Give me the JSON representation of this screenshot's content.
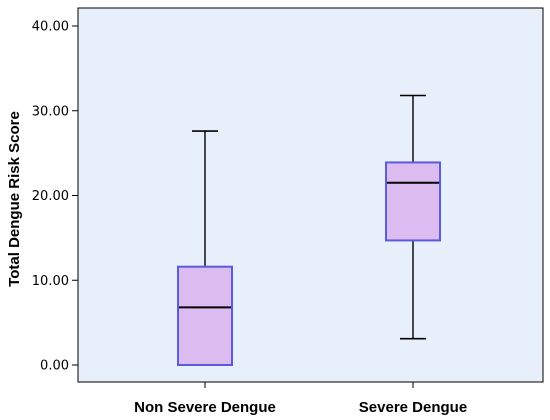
{
  "chart_data": {
    "type": "boxplot",
    "ylabel": "Total Dengue Risk Score",
    "xlabel": "",
    "ylim": [
      0,
      40
    ],
    "yticks": [
      "0.00",
      "10.00",
      "20.00",
      "30.00",
      "40.00"
    ],
    "grid": false,
    "categories": [
      "Non Severe Dengue",
      "Severe Dengue"
    ],
    "boxes": [
      {
        "category": "Non Severe Dengue",
        "min": 0.0,
        "q1": 0.0,
        "median": 6.8,
        "q3": 11.6,
        "max": 27.6
      },
      {
        "category": "Severe Dengue",
        "min": 3.1,
        "q1": 14.7,
        "median": 21.5,
        "q3": 23.9,
        "max": 31.8
      }
    ],
    "colors": {
      "plot_background": "#e6effa",
      "box_fill": "#dcbcf0",
      "box_stroke": "#5b5bdb",
      "median": "#000000",
      "whisker": "#000000"
    }
  }
}
